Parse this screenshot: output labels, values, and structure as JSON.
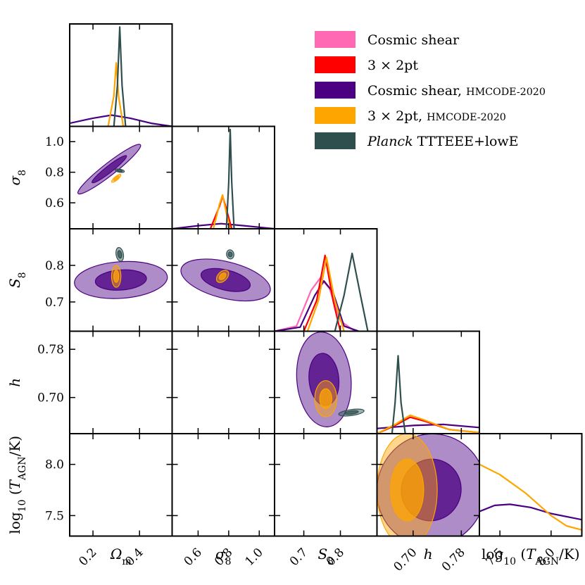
{
  "chart_data": {
    "type": "corner-plot",
    "parameters": [
      {
        "key": "om",
        "label": "Ω",
        "sub": "m",
        "range": [
          0.1,
          0.54
        ],
        "ticks": [
          "0.2",
          "0.4"
        ],
        "tick_values": [
          0.2,
          0.4
        ]
      },
      {
        "key": "s8",
        "label": "σ",
        "sub": "8",
        "range": [
          0.43,
          1.1
        ],
        "ticks": [
          "0.6",
          "0.8",
          "1.0"
        ],
        "tick_values": [
          0.6,
          0.8,
          1.0
        ]
      },
      {
        "key": "S8",
        "label": "S",
        "sub": "8",
        "range": [
          0.62,
          0.9
        ],
        "ticks": [
          "0.7",
          "0.8"
        ],
        "tick_values": [
          0.7,
          0.8
        ]
      },
      {
        "key": "h",
        "label": "h",
        "sub": "",
        "range": [
          0.64,
          0.81
        ],
        "ticks": [
          "0.70",
          "0.78"
        ],
        "tick_values": [
          0.7,
          0.78
        ]
      },
      {
        "key": "tagn",
        "label": "log",
        "sub": "10",
        "label_rest": "(T",
        "sub2": "AGN",
        "label_end": "/K)",
        "range": [
          7.3,
          8.3
        ],
        "ticks": [
          "7.5",
          "8.0"
        ],
        "tick_values": [
          7.5,
          8.0
        ]
      }
    ],
    "series": [
      {
        "name": "Cosmic shear",
        "name_extra": "",
        "italic_prefix": "",
        "color": "#ff69b4"
      },
      {
        "name": "3 × 2pt",
        "name_extra": "",
        "italic_prefix": "",
        "color": "#ff0000"
      },
      {
        "name": "Cosmic shear, ",
        "name_extra": "HMCODE-2020",
        "italic_prefix": "",
        "color": "#4b0082"
      },
      {
        "name": "3 × 2pt, ",
        "name_extra": "HMCODE-2020",
        "italic_prefix": "",
        "color": "#ffa500"
      },
      {
        "name": " TTTEEE+lowE",
        "name_extra": "",
        "italic_prefix": "Planck",
        "color": "#2f4f4f"
      }
    ],
    "marginals": {
      "om": {
        "Cosmic shear, HMCODE-2020": [
          [
            0.1,
            0.03
          ],
          [
            0.2,
            0.08
          ],
          [
            0.28,
            0.11
          ],
          [
            0.36,
            0.08
          ],
          [
            0.45,
            0.03
          ],
          [
            0.54,
            0.0
          ]
        ],
        "3 × 2pt, HMCODE-2020": [
          [
            0.265,
            0.0
          ],
          [
            0.29,
            0.3
          ],
          [
            0.3,
            0.62
          ],
          [
            0.31,
            0.3
          ],
          [
            0.33,
            0.0
          ]
        ],
        "Planck TTTEEE+lowE": [
          [
            0.29,
            0.0
          ],
          [
            0.305,
            0.4
          ],
          [
            0.315,
            0.97
          ],
          [
            0.325,
            0.4
          ],
          [
            0.34,
            0.0
          ]
        ]
      },
      "s8": {
        "Cosmic shear, HMCODE-2020": [
          [
            0.43,
            0.0
          ],
          [
            0.6,
            0.03
          ],
          [
            0.75,
            0.05
          ],
          [
            0.9,
            0.03
          ],
          [
            1.1,
            0.0
          ]
        ],
        "3 × 2pt": [
          [
            0.68,
            0.0
          ],
          [
            0.74,
            0.22
          ],
          [
            0.76,
            0.32
          ],
          [
            0.78,
            0.22
          ],
          [
            0.82,
            0.0
          ]
        ],
        "3 × 2pt, HMCODE-2020": [
          [
            0.7,
            0.0
          ],
          [
            0.74,
            0.24
          ],
          [
            0.76,
            0.33
          ],
          [
            0.785,
            0.15
          ],
          [
            0.81,
            0.0
          ]
        ],
        "Planck TTTEEE+lowE": [
          [
            0.785,
            0.0
          ],
          [
            0.8,
            0.45
          ],
          [
            0.81,
            0.97
          ],
          [
            0.82,
            0.45
          ],
          [
            0.835,
            0.0
          ]
        ]
      },
      "S8": {
        "Cosmic shear": [
          [
            0.62,
            0.0
          ],
          [
            0.68,
            0.05
          ],
          [
            0.72,
            0.4
          ],
          [
            0.745,
            0.52
          ],
          [
            0.77,
            0.42
          ],
          [
            0.8,
            0.1
          ],
          [
            0.84,
            0.0
          ]
        ],
        "Cosmic shear, HMCODE-2020": [
          [
            0.62,
            0.0
          ],
          [
            0.69,
            0.04
          ],
          [
            0.73,
            0.35
          ],
          [
            0.755,
            0.49
          ],
          [
            0.78,
            0.38
          ],
          [
            0.81,
            0.05
          ],
          [
            0.85,
            0.0
          ]
        ],
        "3 × 2pt": [
          [
            0.7,
            0.0
          ],
          [
            0.735,
            0.3
          ],
          [
            0.758,
            0.74
          ],
          [
            0.78,
            0.3
          ],
          [
            0.8,
            0.0
          ]
        ],
        "3 × 2pt, HMCODE-2020": [
          [
            0.71,
            0.0
          ],
          [
            0.74,
            0.3
          ],
          [
            0.762,
            0.72
          ],
          [
            0.785,
            0.3
          ],
          [
            0.81,
            0.0
          ]
        ],
        "Planck TTTEEE+lowE": [
          [
            0.785,
            0.0
          ],
          [
            0.81,
            0.35
          ],
          [
            0.832,
            0.76
          ],
          [
            0.855,
            0.35
          ],
          [
            0.875,
            0.0
          ]
        ]
      },
      "h": {
        "Cosmic shear, HMCODE-2020": [
          [
            0.64,
            0.05
          ],
          [
            0.7,
            0.08
          ],
          [
            0.75,
            0.09
          ],
          [
            0.81,
            0.06
          ]
        ],
        "3 × 2pt": [
          [
            0.64,
            0.0
          ],
          [
            0.67,
            0.08
          ],
          [
            0.695,
            0.16
          ],
          [
            0.72,
            0.12
          ],
          [
            0.76,
            0.04
          ],
          [
            0.81,
            0.01
          ]
        ],
        "3 × 2pt, HMCODE-2020": [
          [
            0.64,
            0.0
          ],
          [
            0.67,
            0.09
          ],
          [
            0.695,
            0.18
          ],
          [
            0.72,
            0.13
          ],
          [
            0.76,
            0.04
          ],
          [
            0.81,
            0.01
          ]
        ],
        "Planck TTTEEE+lowE": [
          [
            0.665,
            0.0
          ],
          [
            0.67,
            0.3
          ],
          [
            0.675,
            0.76
          ],
          [
            0.68,
            0.3
          ],
          [
            0.687,
            0.0
          ]
        ]
      },
      "tagn": {
        "Cosmic shear, HMCODE-2020": [
          [
            7.3,
            0.24
          ],
          [
            7.45,
            0.3
          ],
          [
            7.6,
            0.31
          ],
          [
            7.8,
            0.28
          ],
          [
            8.0,
            0.22
          ],
          [
            8.3,
            0.16
          ]
        ],
        "3 × 2pt, HMCODE-2020": [
          [
            7.3,
            0.7
          ],
          [
            7.5,
            0.6
          ],
          [
            7.75,
            0.42
          ],
          [
            8.0,
            0.2
          ],
          [
            8.15,
            0.1
          ],
          [
            8.3,
            0.06
          ]
        ]
      }
    },
    "contours_2d": [
      {
        "x": "om",
        "y": "s8",
        "series": "Cosmic shear, HMCODE-2020",
        "center": [
          0.27,
          0.82
        ],
        "angle_deg": -38,
        "half_widths": [
          0.17,
          0.04
        ]
      },
      {
        "x": "om",
        "y": "s8",
        "series": "3 × 2pt, HMCODE-2020",
        "center": [
          0.3,
          0.76
        ],
        "angle_deg": -40,
        "half_widths": [
          0.025,
          0.012
        ]
      },
      {
        "x": "om",
        "y": "s8",
        "series": "Planck TTTEEE+lowE",
        "center": [
          0.315,
          0.81
        ],
        "angle_deg": 10,
        "half_widths": [
          0.02,
          0.01
        ]
      },
      {
        "x": "om",
        "y": "S8",
        "series": "Cosmic shear, HMCODE-2020",
        "center": [
          0.32,
          0.76
        ],
        "angle_deg": -4,
        "half_widths": [
          0.2,
          0.05
        ]
      },
      {
        "x": "om",
        "y": "S8",
        "series": "3 × 2pt, HMCODE-2020",
        "center": [
          0.3,
          0.77
        ],
        "angle_deg": 0,
        "half_widths": [
          0.02,
          0.03
        ]
      },
      {
        "x": "om",
        "y": "S8",
        "series": "Planck TTTEEE+lowE",
        "center": [
          0.315,
          0.83
        ],
        "angle_deg": 80,
        "half_widths": [
          0.03,
          0.01
        ]
      },
      {
        "x": "s8",
        "y": "S8",
        "series": "Cosmic shear, HMCODE-2020",
        "center": [
          0.78,
          0.76
        ],
        "angle_deg": 14,
        "half_widths": [
          0.3,
          0.05
        ]
      },
      {
        "x": "s8",
        "y": "S8",
        "series": "3 × 2pt, HMCODE-2020",
        "center": [
          0.76,
          0.77
        ],
        "angle_deg": 45,
        "half_widths": [
          0.03,
          0.02
        ]
      },
      {
        "x": "s8",
        "y": "S8",
        "series": "Planck TTTEEE+lowE",
        "center": [
          0.81,
          0.83
        ],
        "angle_deg": 80,
        "half_widths": [
          0.03,
          0.01
        ]
      },
      {
        "x": "S8",
        "y": "h",
        "series": "Cosmic shear, HMCODE-2020",
        "center": [
          0.755,
          0.73
        ],
        "angle_deg": 85,
        "half_widths": [
          0.13,
          0.045
        ]
      },
      {
        "x": "S8",
        "y": "h",
        "series": "3 × 2pt, HMCODE-2020",
        "center": [
          0.76,
          0.698
        ],
        "angle_deg": 0,
        "half_widths": [
          0.03,
          0.03
        ]
      },
      {
        "x": "S8",
        "y": "h",
        "series": "Planck TTTEEE+lowE",
        "center": [
          0.83,
          0.675
        ],
        "angle_deg": -8,
        "half_widths": [
          0.035,
          0.005
        ]
      },
      {
        "x": "h",
        "y": "tagn",
        "series": "Cosmic shear, HMCODE-2020",
        "center": [
          0.73,
          7.75
        ],
        "angle_deg": 20,
        "half_widths": [
          0.09,
          0.55
        ]
      },
      {
        "x": "h",
        "y": "tagn",
        "series": "3 × 2pt, HMCODE-2020",
        "center": [
          0.69,
          7.75
        ],
        "angle_deg": 0,
        "half_widths": [
          0.05,
          0.55
        ]
      }
    ],
    "legend_position": "top-right"
  }
}
